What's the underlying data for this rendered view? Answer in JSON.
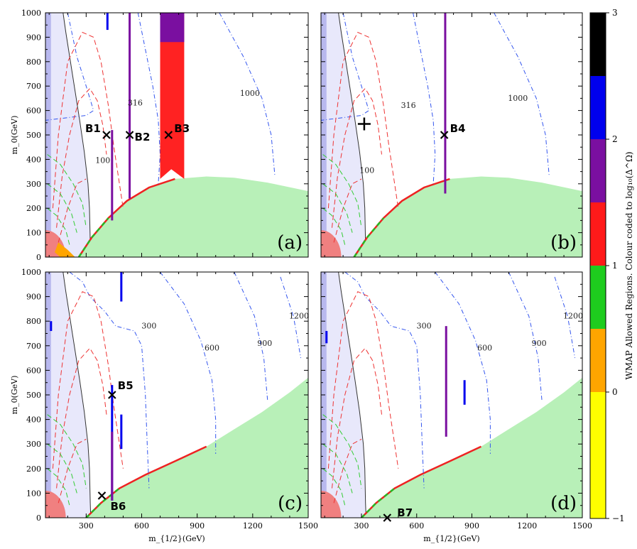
{
  "chart_data": [
    {
      "type": "scatter",
      "panel_label": "(a)",
      "xlabel": "m_{1/2}(GeV)",
      "ylabel": "m_0(GeV)",
      "xlim": [
        80,
        1500
      ],
      "ylim": [
        0,
        1000
      ],
      "x_ticks": [],
      "y_ticks": [
        "0",
        "100",
        "200",
        "300",
        "400",
        "500",
        "600",
        "700",
        "800",
        "900",
        "1000"
      ],
      "contour_labels": [
        {
          "text": "316",
          "x": 565,
          "y": 620
        },
        {
          "text": "100",
          "x": 390,
          "y": 385
        },
        {
          "text": "1000",
          "x": 1185,
          "y": 660
        }
      ],
      "benchmarks": [
        {
          "name": "B1",
          "x": 410,
          "y": 500,
          "marker": "x"
        },
        {
          "name": "B2",
          "x": 535,
          "y": 500,
          "marker": "x"
        },
        {
          "name": "B3",
          "x": 745,
          "y": 500,
          "marker": "x"
        }
      ]
    },
    {
      "type": "scatter",
      "panel_label": "(b)",
      "xlabel": "m_{1/2}(GeV)",
      "ylabel": "m_0(GeV)",
      "xlim": [
        80,
        1500
      ],
      "ylim": [
        0,
        1000
      ],
      "x_ticks": [],
      "y_ticks": [],
      "contour_labels": [
        {
          "text": "316",
          "x": 555,
          "y": 610
        },
        {
          "text": "100",
          "x": 330,
          "y": 345
        },
        {
          "text": "1000",
          "x": 1150,
          "y": 640
        }
      ],
      "benchmarks": [
        {
          "name": "B4",
          "x": 750,
          "y": 500,
          "marker": "x"
        },
        {
          "name": "",
          "x": 315,
          "y": 545,
          "marker": "+"
        }
      ]
    },
    {
      "type": "scatter",
      "panel_label": "(c)",
      "xlabel": "m_{1/2}(GeV)",
      "ylabel": "m_0(GeV)",
      "xlim": [
        80,
        1500
      ],
      "ylim": [
        0,
        1000
      ],
      "x_ticks": [
        "300",
        "600",
        "900",
        "1200",
        "1500"
      ],
      "y_ticks": [
        "0",
        "100",
        "200",
        "300",
        "400",
        "500",
        "600",
        "700",
        "800",
        "900",
        "1000"
      ],
      "contour_labels": [
        {
          "text": "300",
          "x": 640,
          "y": 770
        },
        {
          "text": "600",
          "x": 980,
          "y": 680
        },
        {
          "text": "900",
          "x": 1265,
          "y": 700
        },
        {
          "text": "1200",
          "x": 1450,
          "y": 810
        }
      ],
      "benchmarks": [
        {
          "name": "B5",
          "x": 440,
          "y": 500,
          "marker": "x"
        },
        {
          "name": "B6",
          "x": 385,
          "y": 90,
          "marker": "x"
        }
      ]
    },
    {
      "type": "scatter",
      "panel_label": "(d)",
      "xlabel": "m_{1/2}(GeV)",
      "ylabel": "m_0(GeV)",
      "xlim": [
        80,
        1500
      ],
      "ylim": [
        0,
        1000
      ],
      "x_ticks": [
        "300",
        "600",
        "900",
        "1200",
        "1500"
      ],
      "y_ticks": [],
      "contour_labels": [
        {
          "text": "300",
          "x": 640,
          "y": 770
        },
        {
          "text": "600",
          "x": 970,
          "y": 680
        },
        {
          "text": "900",
          "x": 1265,
          "y": 700
        },
        {
          "text": "1200",
          "x": 1450,
          "y": 810
        }
      ],
      "benchmarks": [
        {
          "name": "B7",
          "x": 440,
          "y": 0,
          "marker": "x"
        }
      ]
    }
  ],
  "colorbar": {
    "title": "WMAP Allowed Regions.  Colour coded to log₁₀(Δ^Ω)",
    "min": -1,
    "max": 3,
    "tick_labels": [
      "3",
      "2",
      "1",
      "0",
      "−1"
    ],
    "bands": [
      {
        "from": 2.5,
        "to": 3,
        "color": "#000000"
      },
      {
        "from": 2,
        "to": 2.5,
        "color": "#0000ee"
      },
      {
        "from": 1.5,
        "to": 2,
        "color": "#7a0fa0"
      },
      {
        "from": 1,
        "to": 1.5,
        "color": "#ff1a1a"
      },
      {
        "from": 0.5,
        "to": 1,
        "color": "#1ecc1e"
      },
      {
        "from": 0,
        "to": 0.5,
        "color": "#ffa500"
      },
      {
        "from": -1,
        "to": 0,
        "color": "#ffff00"
      }
    ]
  },
  "colors": {
    "excluded_lep": "#e8e8fb",
    "excluded_band": "#b8b8ee",
    "stau_lsp": "#b8f0b8",
    "tachyon": "#f08080",
    "contour_blue": "#3355ee",
    "contour_red": "#ee3333",
    "contour_green": "#33cc33"
  }
}
